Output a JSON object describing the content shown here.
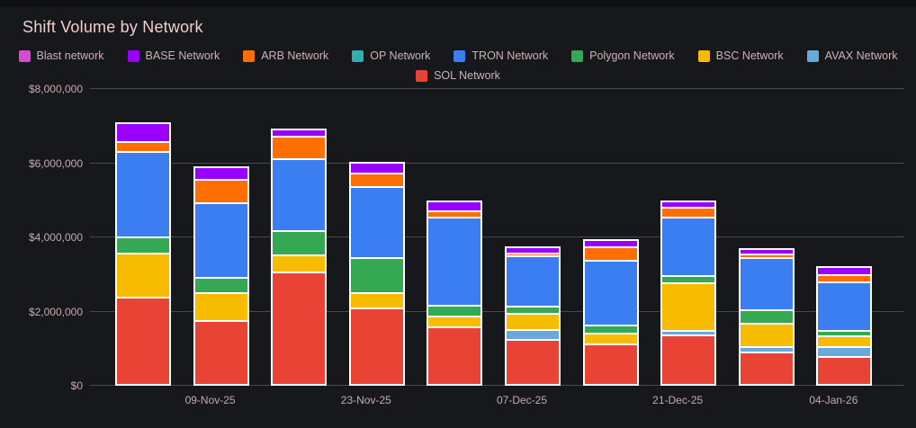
{
  "title": "Shift Volume by Network",
  "colors": {
    "background": "#17181c",
    "title_text": "#f0cdcd",
    "axis_text": "#c4abab",
    "legend_text": "#c9b3b3",
    "grid": "#47494e",
    "bar_border": "#ffffff"
  },
  "chart_data": {
    "type": "bar",
    "stacked": true,
    "title": "Shift Volume by Network",
    "xlabel": "",
    "ylabel": "",
    "ylim": [
      0,
      8000000
    ],
    "grid": true,
    "legend_position": "top",
    "legend_rows": [
      8,
      1
    ],
    "x_tick_labels": [
      "",
      "09-Nov-25",
      "",
      "23-Nov-25",
      "",
      "07-Dec-25",
      "",
      "21-Dec-25",
      "",
      "04-Jan-26"
    ],
    "y_ticks": [
      {
        "value": 0,
        "label": "$0"
      },
      {
        "value": 2000000,
        "label": "$2,000,000"
      },
      {
        "value": 4000000,
        "label": "$4,000,000"
      },
      {
        "value": 6000000,
        "label": "$6,000,000"
      },
      {
        "value": 8000000,
        "label": "$8,000,000"
      }
    ],
    "series": [
      {
        "name": "Blast network",
        "color": "#d44bd4",
        "values": [
          0,
          0,
          0,
          0,
          0,
          0,
          0,
          0,
          0,
          0
        ]
      },
      {
        "name": "BASE Network",
        "color": "#9900ff",
        "values": [
          450000,
          280000,
          150000,
          240000,
          210000,
          110000,
          130000,
          130000,
          100000,
          170000
        ]
      },
      {
        "name": "ARB Network",
        "color": "#ff6f00",
        "values": [
          270000,
          630000,
          600000,
          360000,
          180000,
          90000,
          370000,
          250000,
          100000,
          180000
        ]
      },
      {
        "name": "OP Network",
        "color": "#2ab1ad",
        "values": [
          0,
          0,
          0,
          0,
          0,
          0,
          0,
          0,
          0,
          0
        ]
      },
      {
        "name": "TRON Network",
        "color": "#3b7ef2",
        "values": [
          2300000,
          2020000,
          1940000,
          1920000,
          2360000,
          1350000,
          1760000,
          1580000,
          1400000,
          1320000
        ]
      },
      {
        "name": "Polygon Network",
        "color": "#34a853",
        "values": [
          450000,
          400000,
          660000,
          930000,
          290000,
          190000,
          220000,
          190000,
          360000,
          140000
        ]
      },
      {
        "name": "BSC Network",
        "color": "#f7bc00",
        "values": [
          1180000,
          760000,
          460000,
          420000,
          310000,
          430000,
          280000,
          1290000,
          640000,
          300000
        ]
      },
      {
        "name": "AVAX Network",
        "color": "#68a9dc",
        "values": [
          0,
          0,
          0,
          0,
          0,
          290000,
          0,
          120000,
          150000,
          250000
        ]
      },
      {
        "name": "SOL Network",
        "color": "#e94335",
        "values": [
          2350000,
          1720000,
          3020000,
          2060000,
          1540000,
          1200000,
          1090000,
          1340000,
          870000,
          760000
        ]
      }
    ]
  }
}
